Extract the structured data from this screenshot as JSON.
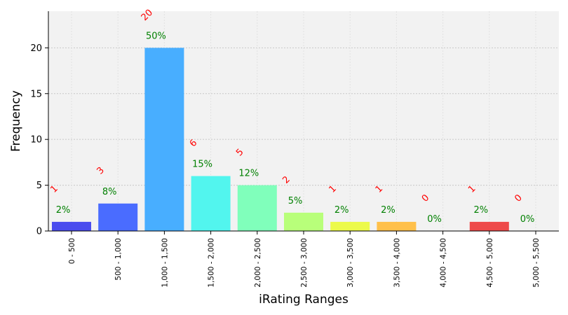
{
  "chart_data": {
    "type": "bar",
    "xlabel": "iRating Ranges",
    "ylabel": "Frequency",
    "categories": [
      "0 - 500",
      "500 - 1,000",
      "1,000 - 1,500",
      "1,500 - 2,000",
      "2,000 - 2,500",
      "2,500 - 3,000",
      "3,000 - 3,500",
      "3,500 - 4,000",
      "4,000 - 4,500",
      "4,500 - 5,000",
      "5,000 - 5,500"
    ],
    "values": [
      1,
      3,
      20,
      6,
      5,
      2,
      1,
      1,
      0,
      1,
      0
    ],
    "count_labels": [
      "1",
      "3",
      "20",
      "6",
      "5",
      "2",
      "1",
      "1",
      "0",
      "1",
      "0"
    ],
    "percent_labels": [
      "2%",
      "8%",
      "50%",
      "15%",
      "12%",
      "5%",
      "2%",
      "2%",
      "0%",
      "2%",
      "0%"
    ],
    "colors": [
      "#4a4cee",
      "#4a6cff",
      "#48aeff",
      "#52f5ee",
      "#80ffbb",
      "#b8ff7a",
      "#ecfa4a",
      "#ffc04a",
      "#ff7a4a",
      "#ee4a4a",
      "#cc2222"
    ],
    "ylim": [
      0,
      24
    ],
    "yticks": [
      0,
      5,
      10,
      15,
      20
    ],
    "ytick_labels": [
      "0",
      "5",
      "10",
      "15",
      "20"
    ],
    "grid": true,
    "plot_background": "#f2f2f2",
    "legend": "none"
  }
}
